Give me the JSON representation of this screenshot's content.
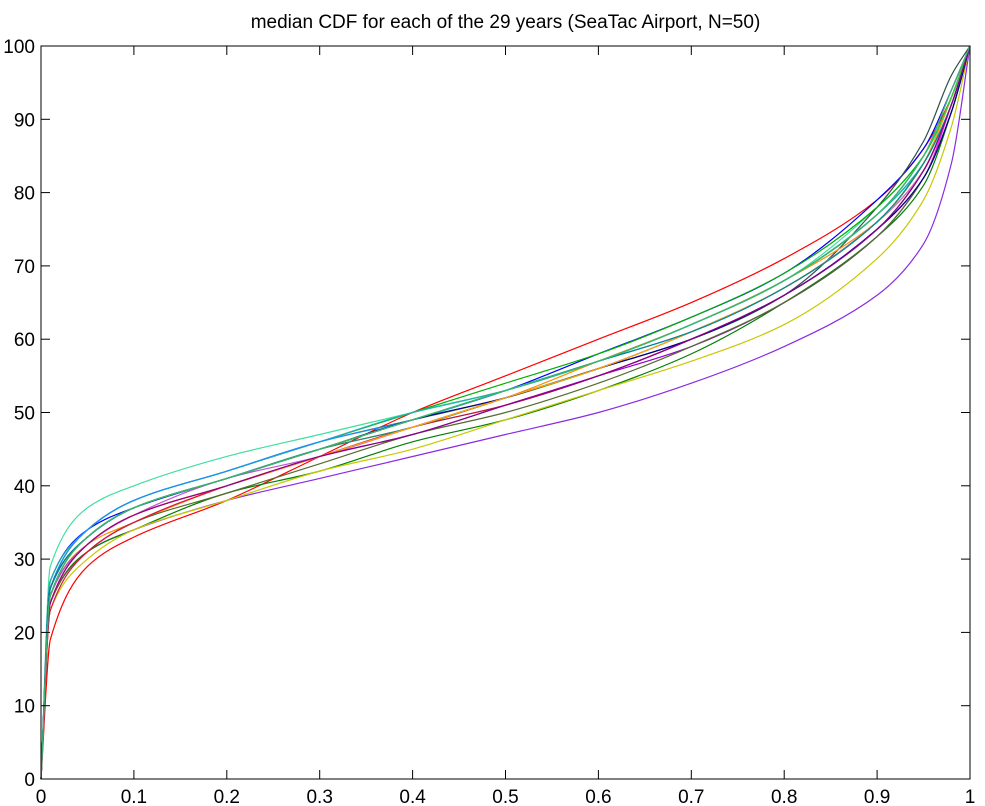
{
  "chart_data": {
    "type": "line",
    "title": "median CDF for each of the 29 years (SeaTac Airport, N=50)",
    "xlabel": "",
    "ylabel": "",
    "xlim": [
      0,
      1
    ],
    "ylim": [
      0,
      100
    ],
    "x_ticks": [
      0,
      0.1,
      0.2,
      0.3,
      0.4,
      0.5,
      0.6,
      0.7,
      0.8,
      0.9,
      1
    ],
    "x_tick_labels": [
      "0",
      "0.1",
      "0.2",
      "0.3",
      "0.4",
      "0.5",
      "0.6",
      "0.7",
      "0.8",
      "0.9",
      "1"
    ],
    "y_ticks": [
      0,
      10,
      20,
      30,
      40,
      50,
      60,
      70,
      80,
      90,
      100
    ],
    "y_tick_labels": [
      "0",
      "10",
      "20",
      "30",
      "40",
      "50",
      "60",
      "70",
      "80",
      "90",
      "100"
    ],
    "grid": false,
    "legend": "none",
    "x": [
      0,
      0.01,
      0.05,
      0.1,
      0.2,
      0.3,
      0.4,
      0.5,
      0.6,
      0.7,
      0.8,
      0.9,
      0.95,
      0.98,
      1
    ],
    "series": [
      {
        "color": "#ff0000",
        "values": [
          0,
          19,
          29,
          33,
          38,
          44,
          50,
          55,
          60,
          65,
          71,
          79,
          86,
          93,
          100
        ]
      },
      {
        "color": "#8a2be2",
        "values": [
          0,
          24,
          31,
          34,
          38,
          41,
          44,
          47,
          50,
          54,
          59,
          66,
          73,
          84,
          100
        ]
      },
      {
        "color": "#40e0a0",
        "values": [
          0,
          29,
          37,
          40,
          44,
          47,
          50,
          53,
          57,
          62,
          68,
          78,
          85,
          93,
          100
        ]
      },
      {
        "color": "#0000ff",
        "values": [
          0,
          27,
          34,
          37,
          41,
          45,
          49,
          53,
          58,
          63,
          69,
          79,
          86,
          94,
          100
        ]
      },
      {
        "color": "#008000",
        "values": [
          0,
          24,
          31,
          34,
          39,
          42,
          46,
          49,
          53,
          58,
          65,
          74,
          81,
          91,
          100
        ]
      },
      {
        "color": "#c8c800",
        "values": [
          0,
          23,
          30,
          34,
          38,
          42,
          45,
          49,
          53,
          57,
          62,
          71,
          79,
          89,
          100
        ]
      },
      {
        "color": "#2f4f4f",
        "values": [
          0,
          26,
          34,
          38,
          42,
          46,
          49,
          52,
          56,
          60,
          66,
          78,
          87,
          96,
          100
        ]
      },
      {
        "color": "#ff8c00",
        "values": [
          0,
          25,
          32,
          35,
          40,
          44,
          48,
          52,
          57,
          62,
          68,
          76,
          83,
          92,
          100
        ]
      },
      {
        "color": "#00c8c8",
        "values": [
          0,
          26,
          33,
          37,
          41,
          45,
          49,
          53,
          57,
          62,
          68,
          77,
          84,
          93,
          100
        ]
      },
      {
        "color": "#ff00ff",
        "values": [
          0,
          24,
          32,
          36,
          40,
          44,
          48,
          51,
          55,
          60,
          66,
          75,
          82,
          92,
          100
        ]
      },
      {
        "color": "#4169e1",
        "values": [
          0,
          25,
          33,
          37,
          41,
          45,
          48,
          52,
          56,
          61,
          67,
          76,
          84,
          93,
          100
        ]
      },
      {
        "color": "#00b000",
        "values": [
          0,
          26,
          34,
          38,
          42,
          46,
          50,
          54,
          58,
          63,
          69,
          78,
          85,
          93,
          100
        ]
      },
      {
        "color": "#9400d3",
        "values": [
          0,
          25,
          32,
          36,
          40,
          44,
          47,
          51,
          55,
          59,
          65,
          74,
          82,
          91,
          100
        ]
      },
      {
        "color": "#556b2f",
        "values": [
          0,
          24,
          31,
          35,
          39,
          43,
          47,
          50,
          54,
          59,
          65,
          74,
          82,
          91,
          100
        ]
      },
      {
        "color": "#6495ed",
        "values": [
          0,
          26,
          33,
          37,
          41,
          45,
          49,
          53,
          57,
          62,
          68,
          77,
          85,
          94,
          100
        ]
      },
      {
        "color": "#dc143c",
        "values": [
          0,
          23,
          31,
          35,
          40,
          44,
          48,
          52,
          56,
          61,
          67,
          76,
          84,
          93,
          100
        ]
      },
      {
        "color": "#20b2aa",
        "values": [
          0,
          27,
          34,
          38,
          42,
          46,
          50,
          53,
          57,
          62,
          68,
          77,
          84,
          92,
          100
        ]
      },
      {
        "color": "#7cfc00",
        "values": [
          0,
          25,
          33,
          37,
          41,
          45,
          49,
          52,
          56,
          61,
          67,
          76,
          83,
          92,
          100
        ]
      },
      {
        "color": "#ba55d3",
        "values": [
          0,
          25,
          32,
          36,
          41,
          44,
          48,
          52,
          56,
          61,
          67,
          76,
          83,
          92,
          100
        ]
      },
      {
        "color": "#1e90ff",
        "values": [
          0,
          26,
          34,
          38,
          42,
          46,
          49,
          53,
          57,
          61,
          67,
          76,
          84,
          93,
          100
        ]
      },
      {
        "color": "#b22222",
        "values": [
          0,
          24,
          32,
          36,
          40,
          44,
          48,
          51,
          55,
          60,
          66,
          75,
          83,
          92,
          100
        ]
      },
      {
        "color": "#2e8b57",
        "values": [
          0,
          25,
          33,
          37,
          41,
          45,
          48,
          52,
          56,
          60,
          66,
          75,
          83,
          92,
          100
        ]
      },
      {
        "color": "#da70d6",
        "values": [
          0,
          24,
          32,
          36,
          40,
          44,
          48,
          52,
          56,
          61,
          67,
          76,
          83,
          92,
          100
        ]
      },
      {
        "color": "#00008b",
        "values": [
          0,
          26,
          33,
          37,
          41,
          45,
          49,
          52,
          56,
          60,
          66,
          75,
          82,
          91,
          100
        ]
      },
      {
        "color": "#ffa500",
        "values": [
          0,
          24,
          32,
          36,
          40,
          44,
          48,
          52,
          56,
          61,
          67,
          76,
          84,
          93,
          100
        ]
      },
      {
        "color": "#008b8b",
        "values": [
          0,
          26,
          33,
          37,
          41,
          45,
          49,
          53,
          57,
          61,
          67,
          76,
          84,
          92,
          100
        ]
      },
      {
        "color": "#32cd32",
        "values": [
          0,
          25,
          33,
          37,
          41,
          45,
          49,
          53,
          57,
          62,
          68,
          77,
          85,
          93,
          100
        ]
      },
      {
        "color": "#8b008b",
        "values": [
          0,
          24,
          32,
          36,
          40,
          44,
          47,
          51,
          55,
          60,
          66,
          75,
          83,
          92,
          100
        ]
      },
      {
        "color": "#3cb371",
        "values": [
          0,
          25,
          33,
          37,
          41,
          45,
          49,
          53,
          57,
          62,
          68,
          77,
          85,
          94,
          100
        ]
      }
    ]
  }
}
